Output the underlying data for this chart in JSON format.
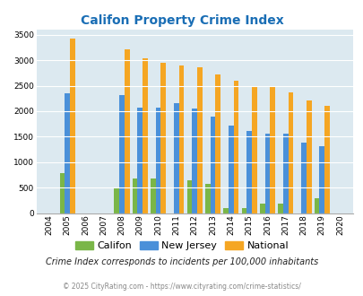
{
  "title": "Califon Property Crime Index",
  "years": [
    2004,
    2005,
    2006,
    2007,
    2008,
    2009,
    2010,
    2011,
    2012,
    2013,
    2014,
    2015,
    2016,
    2017,
    2018,
    2019,
    2020
  ],
  "califon": [
    0,
    780,
    0,
    0,
    510,
    680,
    680,
    0,
    650,
    570,
    100,
    100,
    190,
    190,
    0,
    300,
    0
  ],
  "new_jersey": [
    0,
    2350,
    0,
    0,
    2310,
    2070,
    2070,
    2160,
    2050,
    1900,
    1720,
    1610,
    1560,
    1560,
    1390,
    1320,
    0
  ],
  "national": [
    0,
    3420,
    0,
    0,
    3210,
    3040,
    2950,
    2900,
    2860,
    2720,
    2590,
    2500,
    2470,
    2370,
    2210,
    2110,
    0
  ],
  "califon_color": "#7ab648",
  "nj_color": "#4a90d9",
  "national_color": "#f5a623",
  "bg_color": "#dce9f0",
  "title_color": "#1a6eb5",
  "ylim": [
    0,
    3600
  ],
  "yticks": [
    0,
    500,
    1000,
    1500,
    2000,
    2500,
    3000,
    3500
  ],
  "subtitle": "Crime Index corresponds to incidents per 100,000 inhabitants",
  "footer": "© 2025 CityRating.com - https://www.cityrating.com/crime-statistics/",
  "legend_labels": [
    "Califon",
    "New Jersey",
    "National"
  ],
  "bar_width": 0.28
}
